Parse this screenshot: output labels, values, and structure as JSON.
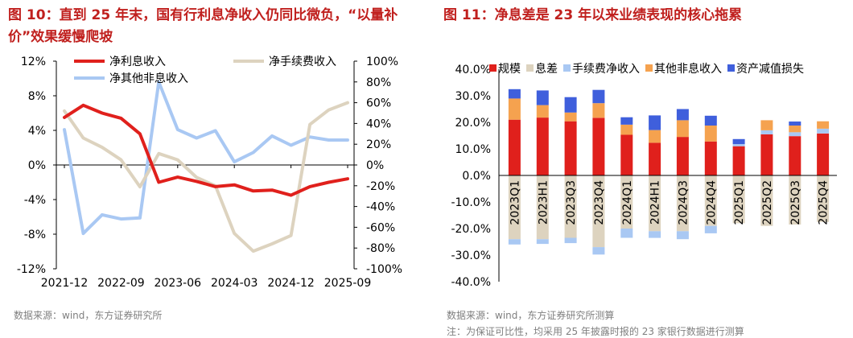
{
  "left_panel": {
    "title": "图 10：直到 25 年末，国有行利息净收入仍同比微负，“以量补价”效果缓慢爬坡",
    "source": "数据来源：wind，东方证券研究所"
  },
  "right_panel": {
    "title": "图 11：净息差是 23 年以来业绩表现的核心拖累",
    "source": "数据来源：wind，东方证券研究所测算",
    "note": "注：为保证可比性，均采用 25 年披露时报的 23 家银行数据进行测算"
  },
  "chart_data": [
    {
      "type": "line",
      "title": "",
      "x_ticks": [
        "2021-12",
        "2022-09",
        "2023-06",
        "2024-03",
        "2024-12",
        "2025-09"
      ],
      "x": [
        "2021-12",
        "2022-03",
        "2022-06",
        "2022-09",
        "2022-12",
        "2023-03",
        "2023-06",
        "2023-09",
        "2023-12",
        "2024-03",
        "2024-06",
        "2024-09",
        "2024-12",
        "2025-03",
        "2025-06",
        "2025-09"
      ],
      "y_left": {
        "ticks": [
          "12%",
          "8%",
          "4%",
          "0%",
          "-4%",
          "-8%",
          "-12%"
        ],
        "ylim": [
          -12,
          12
        ]
      },
      "y_right": {
        "ticks": [
          "100%",
          "80%",
          "60%",
          "40%",
          "20%",
          "0%",
          "-20%",
          "-40%",
          "-60%",
          "-80%",
          "-100%"
        ],
        "ylim": [
          -100,
          100
        ]
      },
      "series": [
        {
          "name": "净利息收入",
          "axis": "left",
          "color": "#e0201c",
          "values": [
            5.5,
            6.9,
            6.0,
            5.4,
            3.6,
            -2.0,
            -1.4,
            -1.9,
            -2.5,
            -2.3,
            -3.0,
            -2.9,
            -3.5,
            -2.5,
            -2.0,
            -1.6
          ]
        },
        {
          "name": "净手续费收入",
          "axis": "right",
          "color": "#ddd3bf",
          "values": [
            52,
            26,
            17,
            5,
            -21,
            11,
            5,
            -12,
            -20,
            -66,
            -83,
            -76,
            -68,
            39,
            53,
            60
          ]
        },
        {
          "name": "净其他非息收入",
          "axis": "right",
          "color": "#a9c8f3",
          "values": [
            34,
            -66,
            -48,
            -52,
            -51,
            80,
            34,
            26,
            33,
            3,
            12,
            28,
            19,
            27,
            24,
            24
          ]
        }
      ],
      "legend": "top"
    },
    {
      "type": "bar",
      "stacked": true,
      "title": "",
      "categories": [
        "2023Q1",
        "2023H1",
        "2023Q3",
        "2023Q4",
        "2024Q1",
        "2024H1",
        "2024Q3",
        "2024Q4",
        "2025Q1",
        "2025Q2",
        "2025Q3",
        "2025Q4"
      ],
      "y_ticks": [
        "40.0%",
        "30.0%",
        "20.0%",
        "10.0%",
        "0.0%",
        "-10.0%",
        "-20.0%",
        "-30.0%",
        "-40.0%"
      ],
      "ylim": [
        -40,
        40
      ],
      "series": [
        {
          "name": "规模",
          "color": "#e0201c",
          "values": [
            21.0,
            21.8,
            20.4,
            21.7,
            15.3,
            12.3,
            14.5,
            12.8,
            11.0,
            15.5,
            14.8,
            15.8
          ]
        },
        {
          "name": "息差",
          "color": "#ddd3bf",
          "values": [
            -24.0,
            -24.0,
            -23.5,
            -27.0,
            -20.0,
            -21.0,
            -21.0,
            -19.0,
            -18.0,
            -19.0,
            -18.5,
            -17.5
          ]
        },
        {
          "name": "手续费净收入",
          "color": "#a9c8f3",
          "values": [
            -2.0,
            -1.8,
            -2.0,
            -2.8,
            -3.5,
            -2.5,
            -3.0,
            -2.8,
            0.8,
            1.5,
            1.5,
            1.8
          ]
        },
        {
          "name": "其他非息收入",
          "color": "#f5a24f",
          "values": [
            8.0,
            4.7,
            3.3,
            5.5,
            3.8,
            4.8,
            6.3,
            6.0,
            0.0,
            3.8,
            2.5,
            2.8
          ]
        },
        {
          "name": "资产减值损失",
          "color": "#3f5fdc",
          "values": [
            3.5,
            5.5,
            5.8,
            5.0,
            2.8,
            5.5,
            4.2,
            3.7,
            1.9,
            0.0,
            1.5,
            0.0
          ]
        }
      ],
      "legend": "top"
    }
  ]
}
